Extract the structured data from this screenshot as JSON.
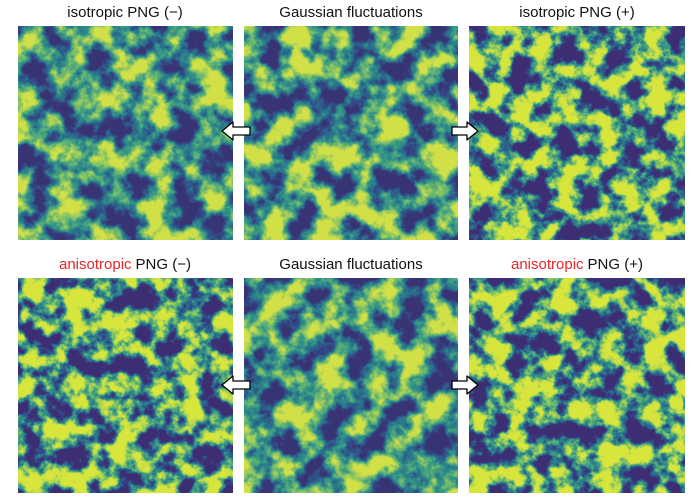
{
  "rows": [
    [
      {
        "title": "isotropic PNG (−)"
      },
      {
        "title": "Gaussian fluctuations"
      },
      {
        "title": "isotropic PNG (+)"
      }
    ],
    [
      {
        "highlight": "anisotropic",
        "title": "PNG (−)"
      },
      {
        "title": "Gaussian fluctuations"
      },
      {
        "highlight": "anisotropic",
        "title": "PNG (+)"
      }
    ]
  ]
}
